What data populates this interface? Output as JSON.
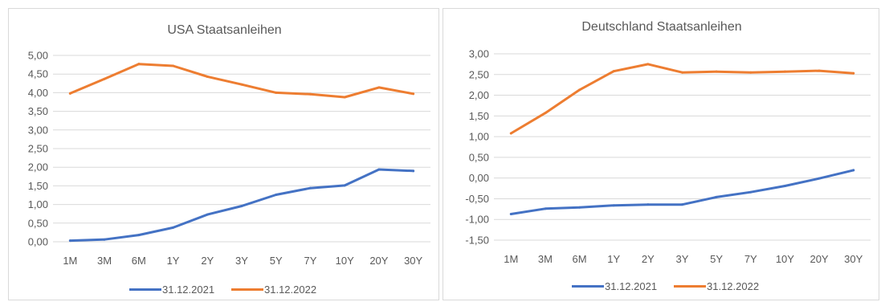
{
  "chart_data": [
    {
      "type": "line",
      "title": "USA Staatsanleihen",
      "categories": [
        "1M",
        "3M",
        "6M",
        "1Y",
        "2Y",
        "3Y",
        "5Y",
        "7Y",
        "10Y",
        "20Y",
        "30Y"
      ],
      "y_ticks": [
        "0,00",
        "0,50",
        "1,00",
        "1,50",
        "2,00",
        "2,50",
        "3,00",
        "3,50",
        "4,00",
        "4,50",
        "5,00"
      ],
      "ylim": [
        0,
        5
      ],
      "grid": true,
      "legend_position": "bottom",
      "series": [
        {
          "name": "31.12.2021",
          "color": "#4472c4",
          "values": [
            0.03,
            0.06,
            0.18,
            0.38,
            0.73,
            0.96,
            1.26,
            1.44,
            1.51,
            1.94,
            1.9
          ]
        },
        {
          "name": "31.12.2022",
          "color": "#ed7d31",
          "values": [
            3.98,
            4.37,
            4.77,
            4.72,
            4.43,
            4.22,
            4.0,
            3.96,
            3.88,
            4.14,
            3.97
          ]
        }
      ]
    },
    {
      "type": "line",
      "title": "Deutschland Staatsanleihen",
      "categories": [
        "1M",
        "3M",
        "6M",
        "1Y",
        "2Y",
        "3Y",
        "5Y",
        "7Y",
        "10Y",
        "20Y",
        "30Y"
      ],
      "y_ticks": [
        "-1,50",
        "-1,00",
        "-0,50",
        "0,00",
        "0,50",
        "1,00",
        "1,50",
        "2,00",
        "2,50",
        "3,00"
      ],
      "ylim": [
        -1.5,
        3
      ],
      "grid": true,
      "legend_position": "bottom",
      "series": [
        {
          "name": "31.12.2021",
          "color": "#4472c4",
          "values": [
            -0.87,
            -0.74,
            -0.71,
            -0.66,
            -0.64,
            -0.64,
            -0.46,
            -0.34,
            -0.19,
            -0.01,
            0.19
          ]
        },
        {
          "name": "31.12.2022",
          "color": "#ed7d31",
          "values": [
            1.08,
            1.57,
            2.13,
            2.58,
            2.75,
            2.55,
            2.57,
            2.55,
            2.57,
            2.59,
            2.53
          ]
        }
      ]
    }
  ]
}
